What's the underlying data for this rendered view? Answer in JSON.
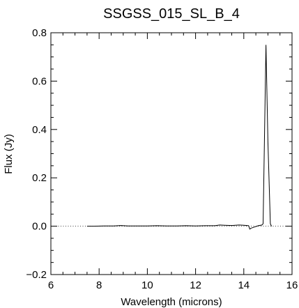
{
  "chart_data": {
    "type": "line",
    "title": "SSGSS_015_SL_B_4",
    "xlabel": "Wavelength (microns)",
    "ylabel": "Flux (Jy)",
    "xlim": [
      6,
      16
    ],
    "ylim": [
      -0.2,
      0.8
    ],
    "x_major_ticks": [
      6,
      8,
      10,
      12,
      14,
      16
    ],
    "x_tick_labels": [
      "6",
      "8",
      "10",
      "12",
      "14",
      "16"
    ],
    "y_major_ticks": [
      -0.2,
      0.0,
      0.2,
      0.4,
      0.6,
      0.8
    ],
    "y_tick_labels": [
      "−0.2",
      "0.0",
      "0.2",
      "0.4",
      "0.6",
      "0.8"
    ],
    "zero_line": {
      "y": 0.0,
      "style": "dotted"
    },
    "grid": false,
    "line_color": "#000000",
    "series": [
      {
        "x": [
          7.5,
          7.8,
          8.2,
          8.6,
          8.9,
          9.2,
          9.6,
          10.0,
          10.4,
          10.8,
          11.2,
          11.6,
          12.0,
          12.4,
          12.8,
          13.0,
          13.2,
          13.5,
          13.8,
          14.0,
          14.2,
          14.25,
          14.3,
          14.4,
          14.6,
          14.75,
          14.8,
          14.92,
          15.0,
          15.1,
          15.15
        ],
        "y": [
          0.0,
          0.0,
          0.001,
          0.001,
          0.003,
          0.001,
          0.001,
          0.001,
          0.002,
          0.001,
          0.001,
          0.002,
          0.001,
          0.002,
          0.002,
          0.005,
          0.004,
          0.003,
          0.005,
          0.004,
          0.002,
          -0.012,
          -0.008,
          -0.005,
          0.002,
          0.005,
          0.01,
          0.75,
          0.35,
          0.01,
          0.0
        ]
      }
    ]
  }
}
